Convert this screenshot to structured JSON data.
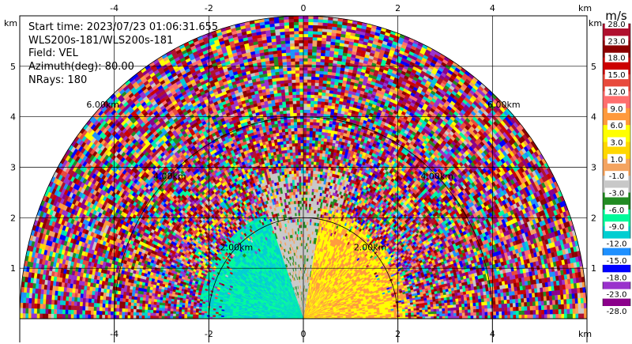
{
  "chart_data": {
    "type": "heatmap",
    "subtype": "radar-ppi-sector",
    "info_lines": [
      "Start time: 2023/07/23 01:06:31.655",
      "WLS200s-181/WLS200s-181",
      "Field: VEL",
      "Azimuth(deg): 80.00",
      "NRays: 180"
    ],
    "x_unit_label": "km",
    "y_unit_label": "km",
    "x_ticks": [
      -4,
      -2,
      0,
      2,
      4
    ],
    "y_ticks": [
      1,
      2,
      3,
      4,
      5
    ],
    "xlim": [
      -6.0,
      6.0
    ],
    "ylim": [
      0.0,
      6.0
    ],
    "grid": true,
    "range_rings": [
      {
        "r": 2.0,
        "label": "2.00km"
      },
      {
        "r": 4.0,
        "label": "4.00km"
      },
      {
        "r": 6.0,
        "label": "6.00km"
      }
    ],
    "sector_deg": [
      0,
      180
    ],
    "max_range_km": 6.0,
    "colorbar": {
      "title": "m/s",
      "tick_labels": [
        "28.0",
        "23.0",
        "18.0",
        "15.0",
        "12.0",
        "9.0",
        "6.0",
        "3.0",
        "1.0",
        "-1.0",
        "-3.0",
        "-6.0",
        "-9.0",
        "-12.0",
        "-15.0",
        "-18.0",
        "-23.0",
        "-28.0"
      ],
      "colors": [
        "#b0102f",
        "#8b0000",
        "#cc0000",
        "#e84a3c",
        "#ff6e6e",
        "#ff9a3c",
        "#ffff00",
        "#ffd700",
        "#f4a460",
        "#c8c8c8",
        "#228b22",
        "#00fa9a",
        "#00ced1",
        "#1e90ff",
        "#0000ff",
        "#9932cc",
        "#8b008b"
      ]
    },
    "field_regions": [
      {
        "desc": "noise",
        "r": [
          2.5,
          6.0
        ],
        "az": [
          0,
          180
        ]
      },
      {
        "desc": "toward",
        "r": [
          0.0,
          2.2
        ],
        "az": [
          90,
          180
        ],
        "value": -9.0
      },
      {
        "desc": "near-zero",
        "r": [
          0.0,
          3.0
        ],
        "az": [
          70,
          110
        ],
        "value": -2.0
      },
      {
        "desc": "away",
        "r": [
          0.0,
          2.2
        ],
        "az": [
          0,
          80
        ],
        "value": 6.0
      }
    ]
  }
}
